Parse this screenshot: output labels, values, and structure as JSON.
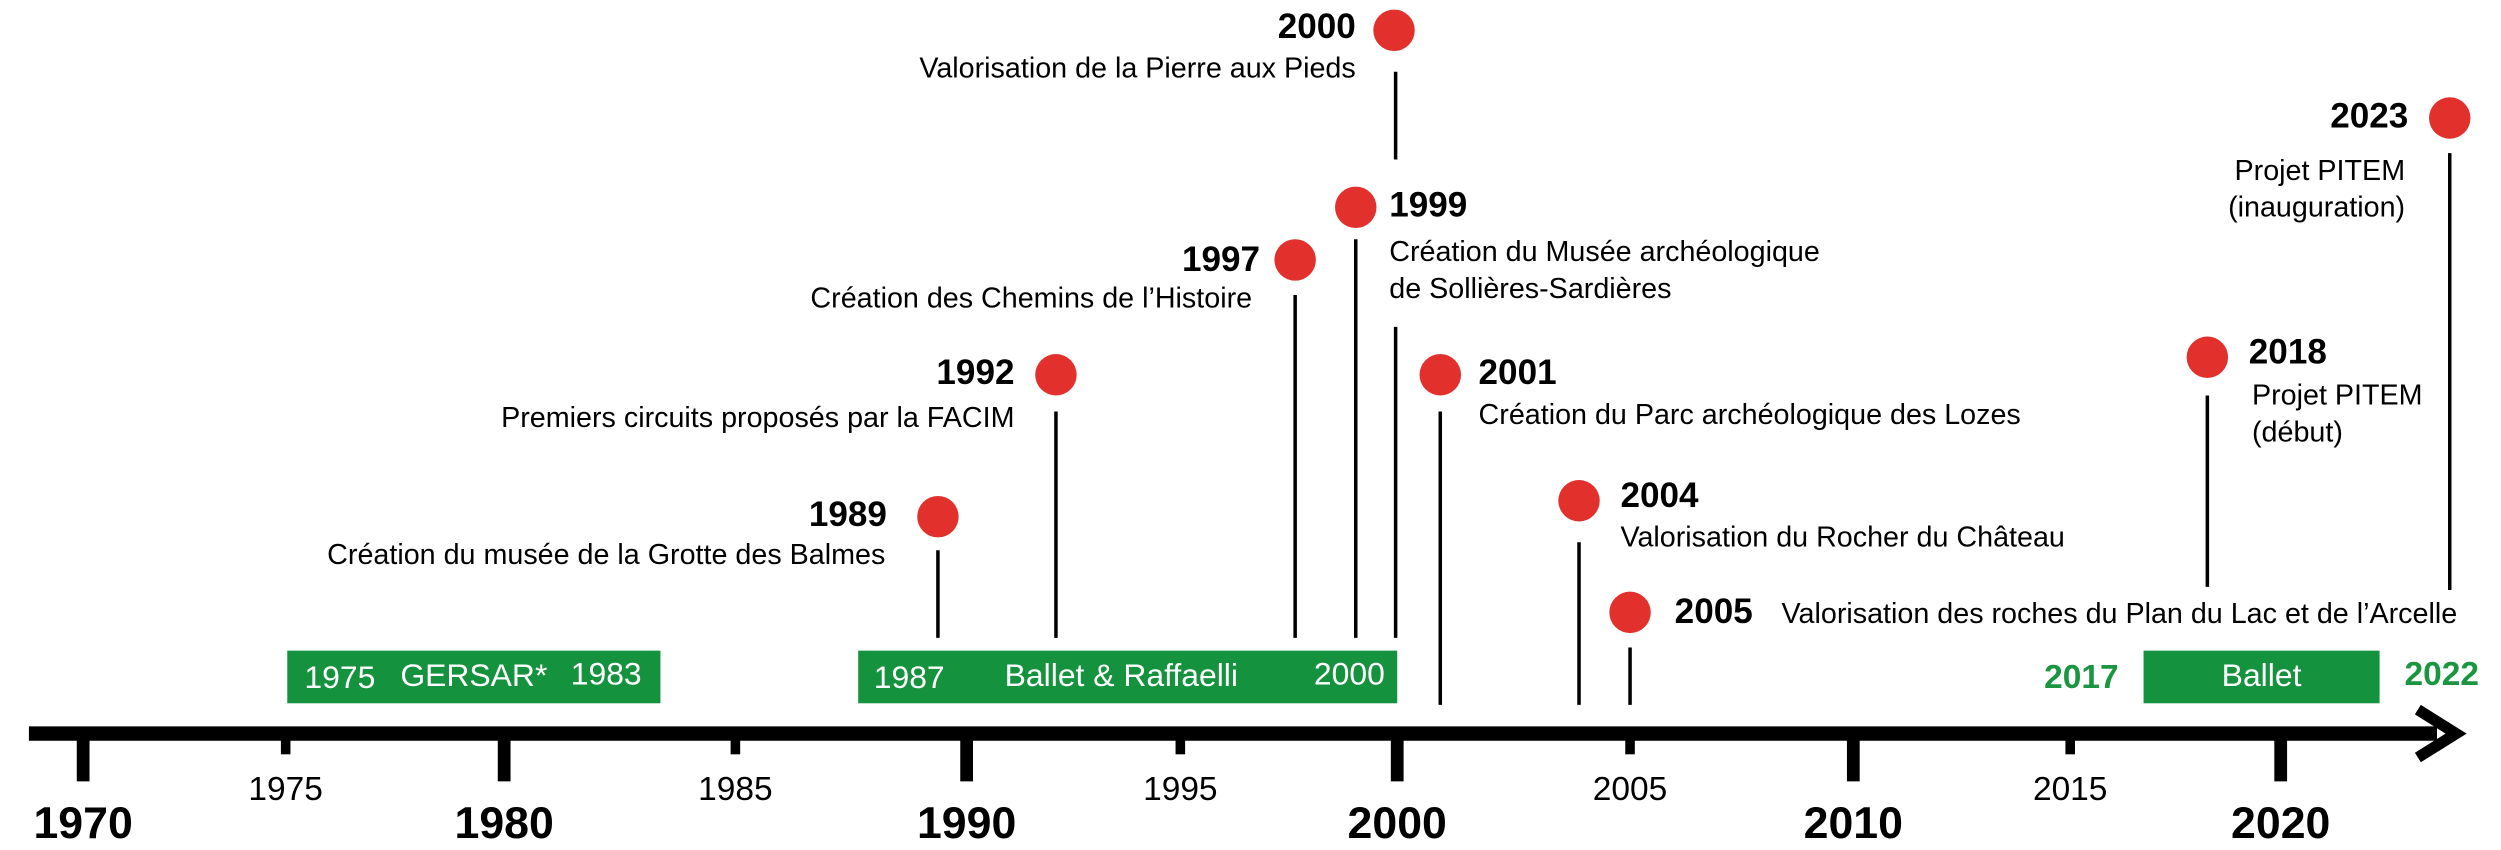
{
  "major_ticks": [
    "1970",
    "1980",
    "1990",
    "2000",
    "2010",
    "2020"
  ],
  "minor_ticks": [
    "1975",
    "1985",
    "1995",
    "2005",
    "2015"
  ],
  "events": [
    {
      "year": "2000",
      "lines": [
        "Valorisation de la Pierre aux Pieds"
      ]
    },
    {
      "year": "1999",
      "lines": [
        "Création du Musée archéologique",
        "de Sollières-Sardières"
      ]
    },
    {
      "year": "1997",
      "lines": [
        "Création des Chemins de l’Histoire"
      ]
    },
    {
      "year": "1992",
      "lines": [
        "Premiers circuits proposés par la FACIM"
      ]
    },
    {
      "year": "1989",
      "lines": [
        "Création du musée de la Grotte des Balmes"
      ]
    },
    {
      "year": "2001",
      "lines": [
        "Création du Parc archéologique des Lozes"
      ]
    },
    {
      "year": "2004",
      "lines": [
        "Valorisation du Rocher du Château"
      ]
    },
    {
      "year": "2005",
      "lines": [
        "Valorisation des roches du Plan du Lac et de l’Arcelle"
      ]
    },
    {
      "year": "2018",
      "lines": [
        "Projet PITEM",
        "(début)"
      ]
    },
    {
      "year": "2023",
      "lines": [
        "Projet PITEM",
        "(inauguration)"
      ]
    }
  ],
  "periods": [
    {
      "start": "1975",
      "label": "GERSAR*",
      "end": "1983"
    },
    {
      "start": "1987",
      "label": "Ballet & Raffaelli",
      "end": "2000"
    },
    {
      "start": "2017",
      "label": "Ballet",
      "end": "2022"
    }
  ]
}
